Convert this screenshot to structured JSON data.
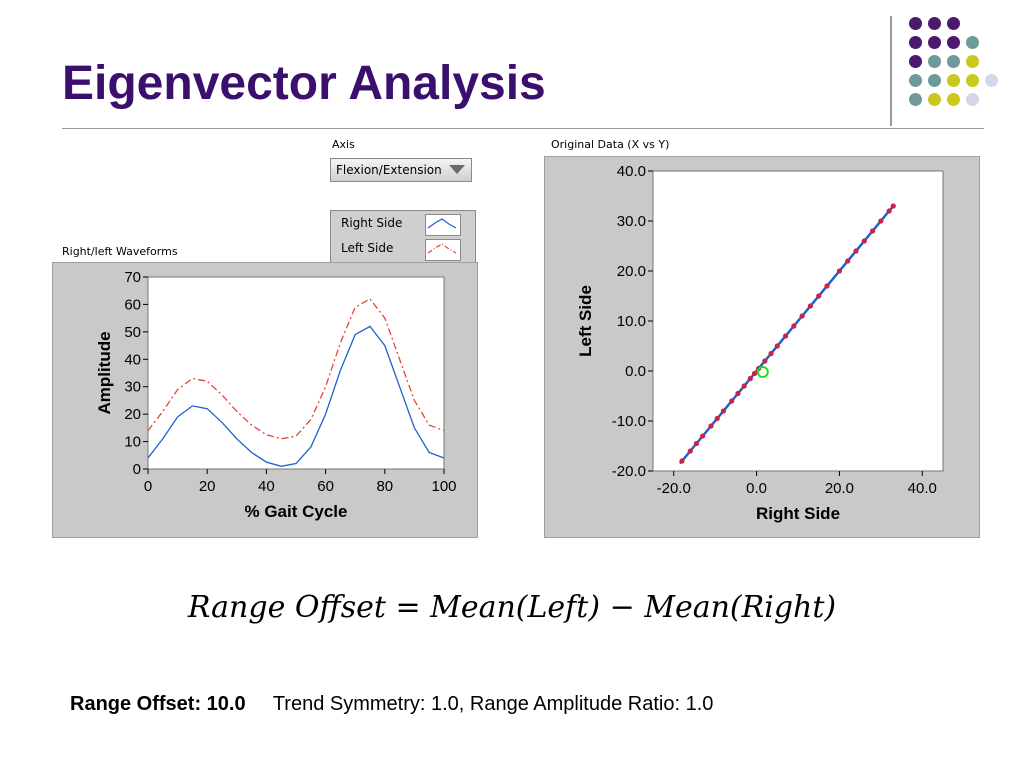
{
  "slide": {
    "title": "Eigenvector Analysis",
    "formula": "Range Offset = Mean(Left) − Mean(Right)",
    "offset_text": "Range Offset: 10.0",
    "metrics_text": "Trend Symmetry: 1.0, Range Amplitude Ratio: 1.0"
  },
  "controls": {
    "axis_label": "Axis",
    "axis_value": "Flexion/Extension",
    "legend_right": "Right Side",
    "legend_left": "Left Side"
  },
  "decor": {
    "dot_colors": [
      "#4b1a6e",
      "#6e9a9a",
      "#c8c81e",
      "#d6d6e8"
    ]
  },
  "chart_data": [
    {
      "type": "line",
      "title": "Right/left Waveforms",
      "xlabel": "% Gait Cycle",
      "ylabel": "Amplitude",
      "xlim": [
        0,
        100
      ],
      "ylim": [
        0,
        70
      ],
      "xticks": [
        0,
        20,
        40,
        60,
        80,
        100
      ],
      "yticks": [
        0,
        10,
        20,
        30,
        40,
        50,
        60,
        70
      ],
      "x": [
        0,
        5,
        10,
        15,
        20,
        25,
        30,
        35,
        40,
        45,
        50,
        55,
        60,
        65,
        70,
        75,
        80,
        85,
        90,
        95,
        100
      ],
      "series": [
        {
          "name": "Right Side",
          "color": "#1f5fd1",
          "style": "solid",
          "values": [
            4,
            11,
            19,
            23,
            22,
            17,
            11,
            6,
            2.5,
            1,
            2,
            8,
            20,
            36,
            49,
            52,
            45,
            30,
            15,
            6,
            4
          ]
        },
        {
          "name": "Left Side",
          "color": "#e3453a",
          "style": "dashdot",
          "values": [
            14,
            21,
            29,
            33,
            32,
            27,
            21,
            16,
            12.5,
            11,
            12,
            18,
            30,
            46,
            59,
            62,
            55,
            40,
            25,
            16,
            14
          ]
        }
      ],
      "grid": false
    },
    {
      "type": "scatter",
      "title": "Original Data (X vs Y)",
      "xlabel": "Right Side",
      "ylabel": "Left Side",
      "xlim": [
        -25,
        45
      ],
      "ylim": [
        -20,
        40
      ],
      "xticks": [
        -20,
        0,
        20,
        40
      ],
      "yticks": [
        -20,
        -10,
        0,
        10,
        20,
        30,
        40
      ],
      "xtick_labels": [
        "-20.0",
        "0.0",
        "20.0",
        "40.0"
      ],
      "ytick_labels": [
        "-20.0",
        "-10.0",
        "0.0",
        "10.0",
        "20.0",
        "30.0",
        "40.0"
      ],
      "fit_line": {
        "x": [
          -18.5,
          33
        ],
        "y": [
          -18.5,
          33
        ],
        "color": "#1f5fd1"
      },
      "marker": {
        "x": 1.5,
        "y": -0.2,
        "color": "#22dd22"
      },
      "points_color": "#cc2244",
      "x": [
        -18,
        -16,
        -14.5,
        -13,
        -11,
        -9.5,
        -8,
        -6,
        -4.5,
        -3,
        -1.5,
        -0.5,
        0.5,
        2,
        3.5,
        5,
        7,
        9,
        11,
        13,
        15,
        17,
        20,
        22,
        24,
        26,
        28,
        30,
        32,
        33
      ],
      "y": [
        -18,
        -16,
        -14.5,
        -13,
        -11,
        -9.5,
        -8,
        -6,
        -4.5,
        -3,
        -1.5,
        -0.5,
        0.5,
        2,
        3.5,
        5,
        7,
        9,
        11,
        13,
        15,
        17,
        20,
        22,
        24,
        26,
        28,
        30,
        32,
        33
      ],
      "grid": false
    }
  ]
}
